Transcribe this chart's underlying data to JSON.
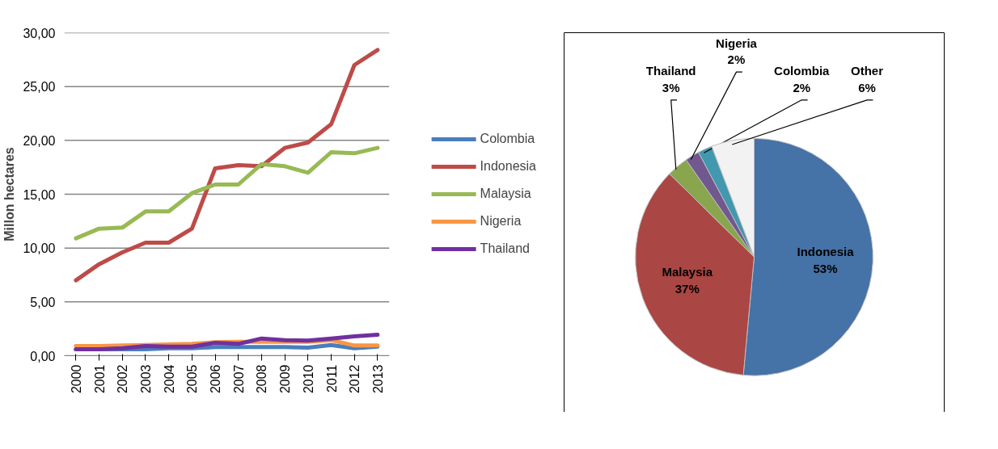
{
  "chart_data": [
    {
      "type": "line",
      "ylabel": "Millon hectares",
      "categories": [
        "2000",
        "2001",
        "2002",
        "2003",
        "2004",
        "2005",
        "2006",
        "2007",
        "2008",
        "2009",
        "2010",
        "2011",
        "2012",
        "2013"
      ],
      "series": [
        {
          "name": "Colombia",
          "color": "#4a7ebb",
          "values": [
            0.6,
            0.6,
            0.6,
            0.6,
            0.7,
            0.7,
            0.8,
            0.8,
            0.8,
            0.8,
            0.75,
            1.0,
            0.7,
            0.85
          ]
        },
        {
          "name": "Indonesia",
          "color": "#be4b48",
          "values": [
            7.0,
            8.5,
            9.6,
            10.5,
            10.5,
            11.8,
            17.4,
            17.7,
            17.6,
            19.3,
            19.8,
            21.5,
            27.0,
            28.4
          ]
        },
        {
          "name": "Malaysia",
          "color": "#98b954",
          "values": [
            10.9,
            11.8,
            11.9,
            13.4,
            13.4,
            15.1,
            15.9,
            15.9,
            17.8,
            17.6,
            17.0,
            18.9,
            18.8,
            19.3
          ]
        },
        {
          "name": "Nigeria",
          "color": "#f79646",
          "values": [
            0.9,
            0.9,
            0.95,
            1.0,
            1.05,
            1.1,
            1.25,
            1.3,
            1.3,
            1.3,
            1.3,
            1.45,
            0.95,
            0.95
          ]
        },
        {
          "name": "Thailand",
          "color": "#7030a0",
          "values": [
            0.6,
            0.6,
            0.7,
            0.9,
            0.85,
            0.85,
            1.2,
            1.1,
            1.6,
            1.45,
            1.4,
            1.6,
            1.8,
            1.95
          ]
        }
      ],
      "ylim": [
        0,
        30
      ],
      "yticks": [
        {
          "value": 0,
          "label": "0,00"
        },
        {
          "value": 5,
          "label": "5,00"
        },
        {
          "value": 10,
          "label": "10,00"
        },
        {
          "value": 15,
          "label": "15,00"
        },
        {
          "value": 20,
          "label": "20,00"
        },
        {
          "value": 25,
          "label": "25,00"
        },
        {
          "value": 30,
          "label": "30,00"
        }
      ],
      "grid": "y",
      "legend": "right"
    },
    {
      "type": "pie",
      "categories": [
        "Indonesia",
        "Malaysia",
        "Thailand",
        "Nigeria",
        "Colombia",
        "Other"
      ],
      "values": [
        53,
        37,
        3,
        2,
        2,
        6
      ],
      "value_labels": [
        "53%",
        "37%",
        "3%",
        "2%",
        "2%",
        "6%"
      ],
      "colors": [
        "#4572a7",
        "#aa4643",
        "#89a54e",
        "#71588f",
        "#4198af",
        "#f2f2f2"
      ]
    }
  ]
}
